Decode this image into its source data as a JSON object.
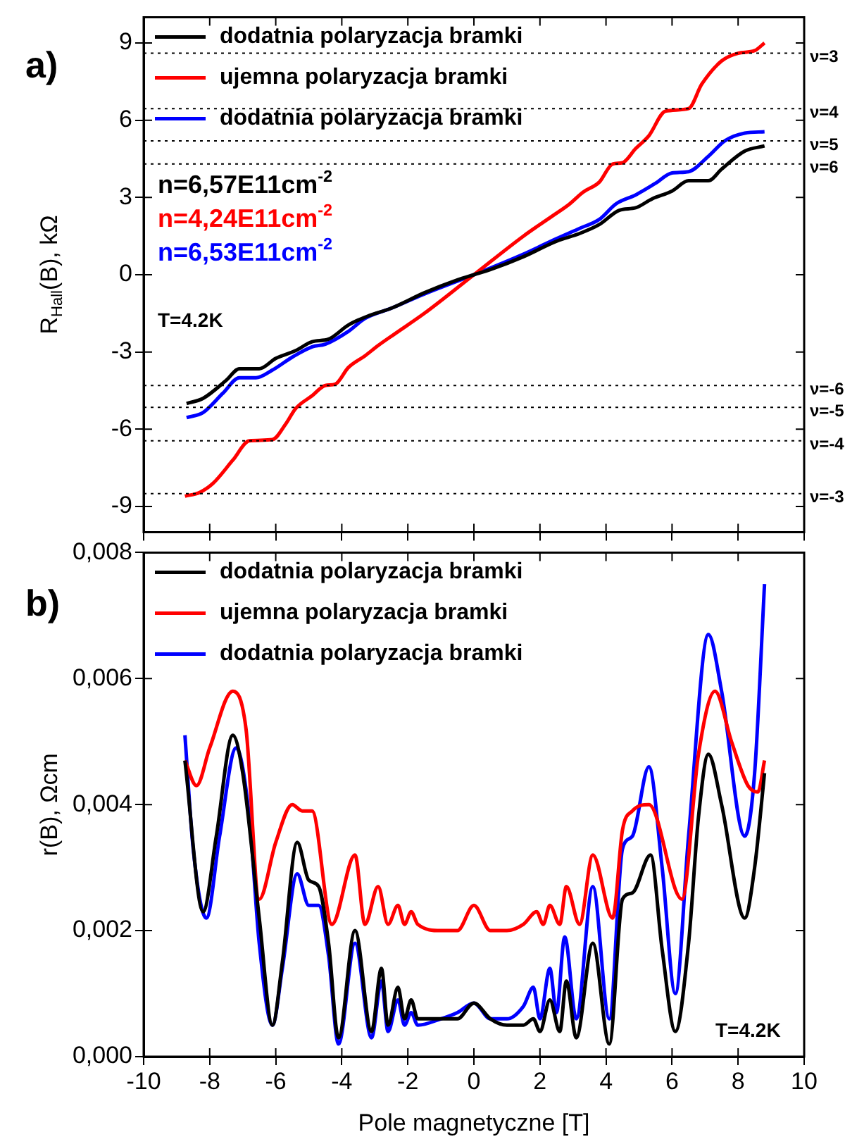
{
  "chart_data": [
    {
      "type": "line",
      "ylabel": "R$_{Hall}$(B), kΩ",
      "xlim": [
        -10,
        10
      ],
      "xticks": [
        -10,
        -8,
        -6,
        -4,
        -2,
        0,
        2,
        4,
        6,
        8,
        10
      ],
      "ylim": [
        -10,
        10
      ],
      "yticks": [
        -9,
        -6,
        -3,
        0,
        3,
        6,
        9
      ],
      "tick_labels": "y",
      "legend": "top left",
      "series": [
        {
          "name": "dodatnia polaryzacja bramki",
          "color": "#000000",
          "x": [
            -8.7,
            -8.2,
            -7.5,
            -7.1,
            -6.5,
            -6.0,
            -5.4,
            -4.9,
            -4.4,
            -3.8,
            -3.2,
            -2.5,
            -1.5,
            -0.5,
            0,
            0.5,
            1.5,
            2.5,
            3.2,
            3.8,
            4.4,
            4.9,
            5.4,
            6.0,
            6.5,
            7.1,
            7.5,
            8.2,
            8.8
          ],
          "values": [
            -5.0,
            -4.8,
            -4.1,
            -3.65,
            -3.65,
            -3.25,
            -2.95,
            -2.6,
            -2.5,
            -1.95,
            -1.6,
            -1.3,
            -0.7,
            -0.2,
            0,
            0.2,
            0.7,
            1.3,
            1.6,
            1.95,
            2.5,
            2.6,
            2.95,
            3.25,
            3.65,
            3.65,
            4.1,
            4.8,
            5.0
          ]
        },
        {
          "name": "ujemna polaryzacja bramki",
          "color": "#ff0000",
          "x": [
            -8.75,
            -8.3,
            -7.9,
            -7.3,
            -6.8,
            -6.1,
            -5.7,
            -5.4,
            -4.9,
            -4.5,
            -4.2,
            -3.8,
            -3.3,
            -2.9,
            -2.4,
            -1.5,
            0,
            1.5,
            2.4,
            2.9,
            3.3,
            3.8,
            4.2,
            4.5,
            4.9,
            5.3,
            5.8,
            6.5,
            6.9,
            7.5,
            8.0,
            8.5,
            8.8
          ],
          "values": [
            -8.6,
            -8.45,
            -8.1,
            -7.2,
            -6.45,
            -6.4,
            -5.8,
            -5.2,
            -4.7,
            -4.3,
            -4.25,
            -3.6,
            -3.15,
            -2.75,
            -2.3,
            -1.5,
            0,
            1.5,
            2.3,
            2.75,
            3.2,
            3.6,
            4.3,
            4.35,
            4.9,
            5.4,
            6.35,
            6.45,
            7.4,
            8.3,
            8.6,
            8.7,
            9.0
          ]
        },
        {
          "name": "dodatnia polaryzacja bramki",
          "color": "#0000ff",
          "x": [
            -8.7,
            -8.2,
            -7.6,
            -7.1,
            -6.6,
            -6.1,
            -5.5,
            -4.9,
            -4.5,
            -3.8,
            -3.3,
            -2.5,
            -1.5,
            0,
            1.5,
            2.5,
            3.2,
            3.8,
            4.3,
            4.9,
            5.5,
            6.0,
            6.5,
            7.1,
            7.6,
            8.2,
            8.8
          ],
          "values": [
            -5.55,
            -5.35,
            -4.6,
            -4.0,
            -4.0,
            -3.7,
            -3.2,
            -2.8,
            -2.7,
            -2.2,
            -1.7,
            -1.3,
            -0.75,
            0,
            0.8,
            1.4,
            1.8,
            2.15,
            2.75,
            3.1,
            3.55,
            3.95,
            4.0,
            4.6,
            5.2,
            5.5,
            5.55
          ]
        }
      ],
      "ref_lines": [
        {
          "axis": "y",
          "value": 8.6,
          "line_style": "dotted"
        },
        {
          "axis": "y",
          "value": 6.45,
          "line_style": "dotted"
        },
        {
          "axis": "y",
          "value": 5.2,
          "line_style": "dotted"
        },
        {
          "axis": "y",
          "value": 4.3,
          "line_style": "dotted"
        },
        {
          "axis": "y",
          "value": -4.3,
          "line_style": "dotted"
        },
        {
          "axis": "y",
          "value": -5.15,
          "line_style": "dotted"
        },
        {
          "axis": "y",
          "value": -6.45,
          "line_style": "dotted"
        },
        {
          "axis": "y",
          "value": -8.5,
          "line_style": "dotted"
        }
      ],
      "annotations": [
        "a)",
        "n=6,57E11cm$^{-2}$",
        "n=4,24E11cm$^{-2}$",
        "n=6,53E11cm$^{-2}$",
        "T=4.2K",
        "ν=3",
        "ν=4",
        "ν=5",
        "ν=6",
        "ν=-6",
        "ν=-5",
        "ν=-4",
        "ν=-3"
      ]
    },
    {
      "type": "line",
      "xlabel": "Pole magnetyczne [T]",
      "ylabel": "r(B), Ωcm",
      "xlim": [
        -10,
        10
      ],
      "xticks": [
        -10,
        -8,
        -6,
        -4,
        -2,
        0,
        2,
        4,
        6,
        8,
        10
      ],
      "ylim": [
        0,
        0.008
      ],
      "yticks": [
        {
          "value": 0,
          "label": "0,000"
        },
        {
          "value": 0.002,
          "label": "0,002"
        },
        {
          "value": 0.004,
          "label": "0,004"
        },
        {
          "value": 0.006,
          "label": "0,006"
        },
        {
          "value": 0.008,
          "label": "0,008"
        }
      ],
      "legend": "top left",
      "series": [
        {
          "name": "dodatnia polaryzacja bramki",
          "color": "#000000",
          "x": [
            -8.75,
            -8.2,
            -7.8,
            -7.3,
            -7.0,
            -6.5,
            -6.1,
            -5.8,
            -5.35,
            -5.0,
            -4.7,
            -4.4,
            -4.1,
            -3.6,
            -3.1,
            -2.8,
            -2.6,
            -2.3,
            -2.1,
            -1.9,
            -1.7,
            -1.0,
            -0.5,
            0,
            0.5,
            1.0,
            1.5,
            1.8,
            2.0,
            2.3,
            2.6,
            2.8,
            3.1,
            3.6,
            4.1,
            4.5,
            4.8,
            5.35,
            5.7,
            6.1,
            6.5,
            6.8,
            7.1,
            7.5,
            8.2,
            8.5,
            8.8
          ],
          "values": [
            0.0047,
            0.0023,
            0.0035,
            0.0051,
            0.0045,
            0.0022,
            0.0005,
            0.0015,
            0.0034,
            0.0028,
            0.0027,
            0.0018,
            0.0003,
            0.002,
            0.0004,
            0.0014,
            0.0005,
            0.0011,
            0.0006,
            0.0009,
            0.0006,
            0.0006,
            0.0006,
            0.00085,
            0.0006,
            0.0005,
            0.0005,
            0.0006,
            0.0004,
            0.0009,
            0.0004,
            0.0012,
            0.0003,
            0.0018,
            0.0002,
            0.0025,
            0.0026,
            0.0032,
            0.0017,
            0.0004,
            0.0018,
            0.0038,
            0.0048,
            0.004,
            0.0022,
            0.003,
            0.0045
          ]
        },
        {
          "name": "ujemna polaryzacja bramki",
          "color": "#ff0000",
          "x": [
            -8.75,
            -8.4,
            -8.0,
            -7.3,
            -6.9,
            -6.5,
            -6.0,
            -5.5,
            -5.2,
            -4.9,
            -4.3,
            -3.6,
            -3.3,
            -2.9,
            -2.6,
            -2.3,
            -2.1,
            -1.9,
            -1.7,
            -1.0,
            -0.5,
            0,
            0.5,
            1.0,
            1.5,
            1.9,
            2.1,
            2.3,
            2.6,
            2.8,
            3.2,
            3.6,
            4.2,
            4.5,
            4.8,
            5.3,
            6.3,
            6.8,
            7.3,
            7.8,
            8.3,
            8.6,
            8.8
          ],
          "values": [
            0.0047,
            0.0043,
            0.0049,
            0.0058,
            0.0052,
            0.0025,
            0.0034,
            0.004,
            0.0039,
            0.0039,
            0.0021,
            0.0032,
            0.0021,
            0.0027,
            0.0021,
            0.0024,
            0.0021,
            0.0023,
            0.0021,
            0.002,
            0.002,
            0.0024,
            0.002,
            0.002,
            0.0021,
            0.0023,
            0.0021,
            0.0024,
            0.0021,
            0.0027,
            0.0021,
            0.0032,
            0.0022,
            0.0036,
            0.0039,
            0.004,
            0.0025,
            0.0048,
            0.0058,
            0.005,
            0.0043,
            0.0042,
            0.0047
          ]
        },
        {
          "name": "dodatnia polaryzacja bramki",
          "color": "#0000ff",
          "x": [
            -8.75,
            -8.5,
            -8.1,
            -7.7,
            -7.2,
            -6.8,
            -6.5,
            -6.1,
            -5.8,
            -5.35,
            -5.0,
            -4.7,
            -4.4,
            -4.1,
            -3.6,
            -3.1,
            -2.8,
            -2.6,
            -2.3,
            -2.1,
            -1.9,
            -1.7,
            -1.0,
            -0.5,
            0,
            0.5,
            1.0,
            1.5,
            1.8,
            2.0,
            2.3,
            2.5,
            2.75,
            3.1,
            3.6,
            4.1,
            4.5,
            4.8,
            5.3,
            5.7,
            6.1,
            6.5,
            7.1,
            7.5,
            8.2,
            8.5,
            8.8
          ],
          "values": [
            0.0051,
            0.0033,
            0.0022,
            0.0035,
            0.0049,
            0.0038,
            0.0018,
            0.0005,
            0.0014,
            0.0029,
            0.0024,
            0.0024,
            0.0016,
            0.0002,
            0.0018,
            0.0003,
            0.0012,
            0.0004,
            0.0009,
            0.0005,
            0.0007,
            0.0005,
            0.0006,
            0.0007,
            0.00085,
            0.0006,
            0.0006,
            0.0008,
            0.0011,
            0.0006,
            0.0014,
            0.0007,
            0.0019,
            0.0006,
            0.0027,
            0.0006,
            0.0033,
            0.0035,
            0.0046,
            0.003,
            0.001,
            0.0035,
            0.0067,
            0.0058,
            0.0035,
            0.0045,
            0.0075
          ]
        }
      ],
      "annotations": [
        "b)",
        "T=4.2K"
      ]
    }
  ]
}
